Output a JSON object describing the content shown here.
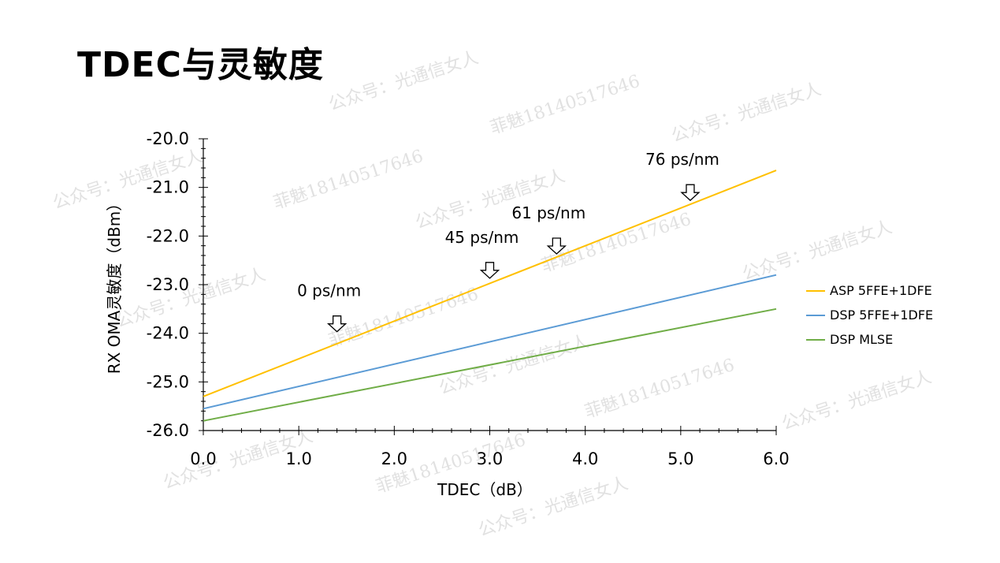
{
  "title": "TDEC与灵敏度",
  "chart_data": {
    "type": "line",
    "title": "",
    "xlabel": "TDEC（dB）",
    "ylabel": "RX OMA灵敏度（dBm）",
    "xlim": [
      0,
      6
    ],
    "ylim": [
      -26,
      -20
    ],
    "x_ticks": [
      "0.0",
      "1.0",
      "2.0",
      "3.0",
      "4.0",
      "5.0",
      "6.0"
    ],
    "y_ticks": [
      "-20.0",
      "-21.0",
      "-22.0",
      "-23.0",
      "-24.0",
      "-25.0",
      "-26.0"
    ],
    "grid": false,
    "legend_position": "right",
    "series": [
      {
        "name": "ASP 5FFE+1DFE",
        "color": "#FFC000",
        "x": [
          0,
          6
        ],
        "y": [
          -25.3,
          -20.65
        ]
      },
      {
        "name": "DSP 5FFE+1DFE",
        "color": "#5B9BD5",
        "x": [
          0,
          6
        ],
        "y": [
          -25.55,
          -22.8
        ]
      },
      {
        "name": "DSP MLSE",
        "color": "#70AD47",
        "x": [
          0,
          6
        ],
        "y": [
          -25.8,
          -23.5
        ]
      }
    ],
    "annotations": [
      {
        "text": "0 ps/nm",
        "x": 1.4,
        "y": -24.0
      },
      {
        "text": "45 ps/nm",
        "x": 3.0,
        "y": -22.9
      },
      {
        "text": "61 ps/nm",
        "x": 3.7,
        "y": -22.4
      },
      {
        "text": "76 ps/nm",
        "x": 5.1,
        "y": -21.3
      }
    ]
  },
  "watermarks": [
    "公众号：光通信女人",
    "菲魅18140517646"
  ]
}
